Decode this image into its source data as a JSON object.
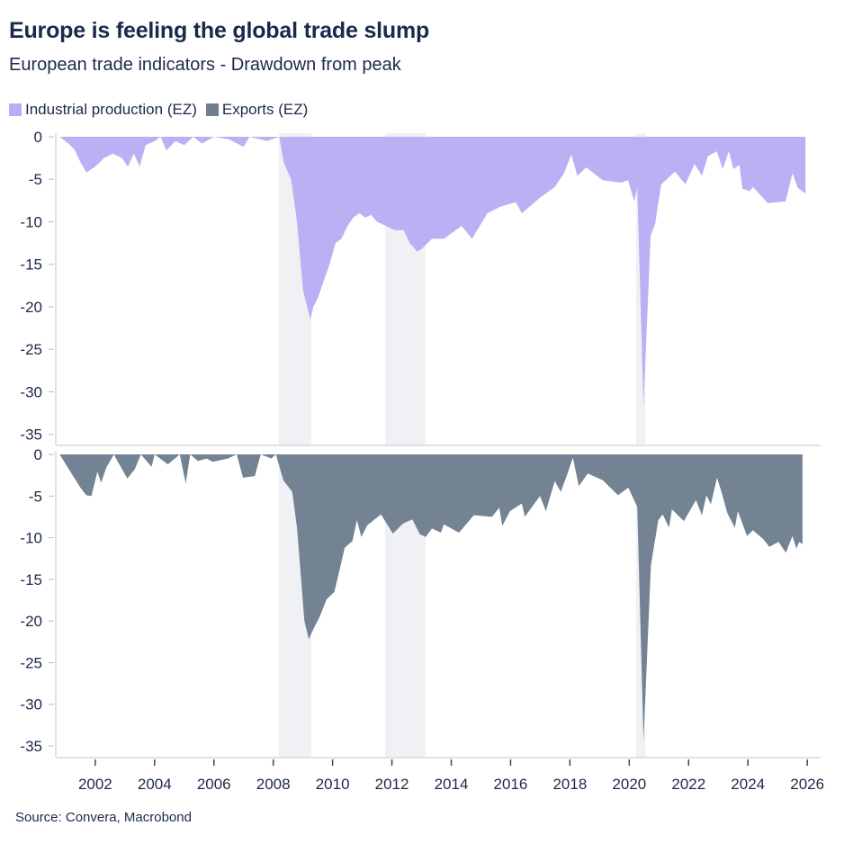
{
  "header": {
    "title": "Europe is feeling the global trade slump",
    "subtitle": "European trade indicators - Drawdown from peak"
  },
  "legend": [
    {
      "label": "Industrial production (EZ)",
      "color": "#b8aef5"
    },
    {
      "label": "Exports (EZ)",
      "color": "#6f7f8f"
    }
  ],
  "source": "Source: Convera, Macrobond",
  "chart_data": {
    "type": "area",
    "layout": "two stacked panels sharing x-axis",
    "xlim": [
      2000.67,
      2026.45
    ],
    "x_ticks": [
      "2002",
      "2004",
      "2006",
      "2008",
      "2010",
      "2012",
      "2014",
      "2016",
      "2018",
      "2020",
      "2022",
      "2024",
      "2026"
    ],
    "shaded_periods": [
      [
        2008.19,
        2009.28
      ],
      [
        2011.77,
        2013.13
      ],
      [
        2020.23,
        2020.54
      ]
    ],
    "shade_color": "#f0f1f4",
    "grid": false,
    "legend_placement": "top-left",
    "panels": [
      {
        "series_name": "Industrial production (EZ)",
        "color": "#b8aef5",
        "ylim": [
          -36.3,
          0
        ],
        "y_ticks": [
          "0",
          "-5",
          "-10",
          "-15",
          "-20",
          "-25",
          "-30",
          "-35"
        ],
        "points": [
          [
            2000.8,
            0
          ],
          [
            2001.1,
            -0.8
          ],
          [
            2001.3,
            -1.5
          ],
          [
            2001.5,
            -3
          ],
          [
            2001.7,
            -4.2
          ],
          [
            2002.0,
            -3.5
          ],
          [
            2002.3,
            -2.5
          ],
          [
            2002.6,
            -2
          ],
          [
            2002.9,
            -2.5
          ],
          [
            2003.1,
            -3.5
          ],
          [
            2003.3,
            -2
          ],
          [
            2003.5,
            -3.5
          ],
          [
            2003.7,
            -1
          ],
          [
            2004.0,
            -0.5
          ],
          [
            2004.2,
            0
          ],
          [
            2004.4,
            -1.6
          ],
          [
            2004.7,
            -0.5
          ],
          [
            2005.0,
            -1
          ],
          [
            2005.3,
            0
          ],
          [
            2005.6,
            -0.8
          ],
          [
            2006.0,
            0
          ],
          [
            2006.5,
            -0.3
          ],
          [
            2007.0,
            -1.2
          ],
          [
            2007.2,
            0
          ],
          [
            2007.8,
            -0.5
          ],
          [
            2008.2,
            0
          ],
          [
            2008.35,
            -3
          ],
          [
            2008.6,
            -5
          ],
          [
            2008.8,
            -10
          ],
          [
            2009.0,
            -18
          ],
          [
            2009.25,
            -21.5
          ],
          [
            2009.35,
            -20
          ],
          [
            2009.5,
            -19
          ],
          [
            2009.7,
            -17
          ],
          [
            2009.9,
            -15
          ],
          [
            2010.1,
            -12.5
          ],
          [
            2010.3,
            -12
          ],
          [
            2010.5,
            -10.5
          ],
          [
            2010.7,
            -9.5
          ],
          [
            2010.9,
            -9
          ],
          [
            2011.1,
            -9.5
          ],
          [
            2011.3,
            -9.2
          ],
          [
            2011.5,
            -10
          ],
          [
            2011.8,
            -10.5
          ],
          [
            2012.1,
            -11
          ],
          [
            2012.4,
            -11
          ],
          [
            2012.6,
            -12.5
          ],
          [
            2012.85,
            -13.5
          ],
          [
            2013.0,
            -13.2
          ],
          [
            2013.35,
            -12
          ],
          [
            2013.75,
            -12
          ],
          [
            2014.35,
            -10.5
          ],
          [
            2014.7,
            -12
          ],
          [
            2015.22,
            -9
          ],
          [
            2015.67,
            -8.2
          ],
          [
            2016.17,
            -7.7
          ],
          [
            2016.38,
            -9
          ],
          [
            2016.98,
            -7.2
          ],
          [
            2017.49,
            -5.9
          ],
          [
            2017.8,
            -4.3
          ],
          [
            2018.05,
            -2.1
          ],
          [
            2018.25,
            -4.6
          ],
          [
            2018.55,
            -3.6
          ],
          [
            2019.1,
            -5.1
          ],
          [
            2019.72,
            -5.4
          ],
          [
            2019.96,
            -5.1
          ],
          [
            2020.17,
            -7.6
          ],
          [
            2020.27,
            -6
          ],
          [
            2020.48,
            -31.7
          ],
          [
            2020.72,
            -11.6
          ],
          [
            2020.87,
            -10.3
          ],
          [
            2021.08,
            -5.6
          ],
          [
            2021.54,
            -4.1
          ],
          [
            2021.89,
            -5.6
          ],
          [
            2022.2,
            -3.2
          ],
          [
            2022.45,
            -4.6
          ],
          [
            2022.65,
            -2.3
          ],
          [
            2022.95,
            -1.7
          ],
          [
            2023.15,
            -3.8
          ],
          [
            2023.36,
            -1.7
          ],
          [
            2023.51,
            -3.8
          ],
          [
            2023.71,
            -3.3
          ],
          [
            2023.81,
            -6.1
          ],
          [
            2024.06,
            -6.4
          ],
          [
            2024.17,
            -5.9
          ],
          [
            2024.67,
            -7.8
          ],
          [
            2025.27,
            -7.6
          ],
          [
            2025.5,
            -4.3
          ],
          [
            2025.68,
            -6
          ],
          [
            2025.94,
            -6.7
          ]
        ]
      },
      {
        "series_name": "Exports (EZ)",
        "color": "#6f7f8f",
        "ylim": [
          -36.4,
          0
        ],
        "y_ticks": [
          "0",
          "-5",
          "-10",
          "-15",
          "-20",
          "-25",
          "-30",
          "-35"
        ],
        "points": [
          [
            2000.8,
            0
          ],
          [
            2001.2,
            -2.3
          ],
          [
            2001.5,
            -4
          ],
          [
            2001.7,
            -4.9
          ],
          [
            2001.87,
            -5
          ],
          [
            2002.07,
            -2.1
          ],
          [
            2002.2,
            -3.4
          ],
          [
            2002.37,
            -1.6
          ],
          [
            2002.63,
            0
          ],
          [
            2002.78,
            -1
          ],
          [
            2003.08,
            -2.9
          ],
          [
            2003.33,
            -1.8
          ],
          [
            2003.54,
            0
          ],
          [
            2003.9,
            -1.5
          ],
          [
            2004.0,
            0
          ],
          [
            2004.45,
            -1.2
          ],
          [
            2004.85,
            0
          ],
          [
            2005.05,
            -3.5
          ],
          [
            2005.2,
            0
          ],
          [
            2005.46,
            -0.8
          ],
          [
            2005.76,
            -0.5
          ],
          [
            2005.96,
            -0.9
          ],
          [
            2006.47,
            -0.5
          ],
          [
            2006.77,
            0
          ],
          [
            2006.98,
            -2.8
          ],
          [
            2007.38,
            -2.6
          ],
          [
            2007.58,
            0
          ],
          [
            2007.94,
            -0.5
          ],
          [
            2008.09,
            0
          ],
          [
            2008.34,
            -3.1
          ],
          [
            2008.64,
            -4.5
          ],
          [
            2008.8,
            -8.8
          ],
          [
            2009.05,
            -20
          ],
          [
            2009.2,
            -22.2
          ],
          [
            2009.35,
            -21
          ],
          [
            2009.55,
            -19.6
          ],
          [
            2009.8,
            -17.4
          ],
          [
            2010.06,
            -16.5
          ],
          [
            2010.26,
            -13.5
          ],
          [
            2010.41,
            -11.2
          ],
          [
            2010.67,
            -10.4
          ],
          [
            2010.82,
            -7.9
          ],
          [
            2010.97,
            -9.9
          ],
          [
            2011.17,
            -8.5
          ],
          [
            2011.63,
            -7.2
          ],
          [
            2012.03,
            -9.5
          ],
          [
            2012.38,
            -8.3
          ],
          [
            2012.69,
            -7.8
          ],
          [
            2012.94,
            -9.6
          ],
          [
            2013.14,
            -9.9
          ],
          [
            2013.35,
            -8.9
          ],
          [
            2013.65,
            -9.4
          ],
          [
            2013.75,
            -8.4
          ],
          [
            2014.26,
            -9.4
          ],
          [
            2014.76,
            -7.3
          ],
          [
            2015.37,
            -7.5
          ],
          [
            2015.62,
            -6.4
          ],
          [
            2015.72,
            -8.6
          ],
          [
            2015.98,
            -6.8
          ],
          [
            2016.38,
            -5.9
          ],
          [
            2016.48,
            -7.5
          ],
          [
            2016.99,
            -5
          ],
          [
            2017.19,
            -6.8
          ],
          [
            2017.49,
            -3.2
          ],
          [
            2017.69,
            -4.5
          ],
          [
            2017.9,
            -2.5
          ],
          [
            2018.1,
            -0.4
          ],
          [
            2018.3,
            -3.8
          ],
          [
            2018.6,
            -2.3
          ],
          [
            2019.11,
            -3.1
          ],
          [
            2019.62,
            -4.9
          ],
          [
            2019.97,
            -4
          ],
          [
            2020.27,
            -6.3
          ],
          [
            2020.48,
            -34.3
          ],
          [
            2020.73,
            -13.3
          ],
          [
            2020.98,
            -7.9
          ],
          [
            2021.13,
            -7.2
          ],
          [
            2021.34,
            -8.8
          ],
          [
            2021.44,
            -6.6
          ],
          [
            2021.84,
            -8
          ],
          [
            2022.25,
            -5.5
          ],
          [
            2022.45,
            -7.3
          ],
          [
            2022.6,
            -4.9
          ],
          [
            2022.75,
            -6
          ],
          [
            2022.96,
            -2.8
          ],
          [
            2023.1,
            -4.4
          ],
          [
            2023.31,
            -7.1
          ],
          [
            2023.56,
            -8.8
          ],
          [
            2023.66,
            -6.8
          ],
          [
            2023.97,
            -9.8
          ],
          [
            2024.17,
            -9.1
          ],
          [
            2024.52,
            -10.2
          ],
          [
            2024.72,
            -11.1
          ],
          [
            2025.03,
            -10.5
          ],
          [
            2025.28,
            -11.8
          ],
          [
            2025.5,
            -9.8
          ],
          [
            2025.63,
            -11.3
          ],
          [
            2025.73,
            -10.5
          ],
          [
            2025.84,
            -10.8
          ]
        ]
      }
    ]
  }
}
